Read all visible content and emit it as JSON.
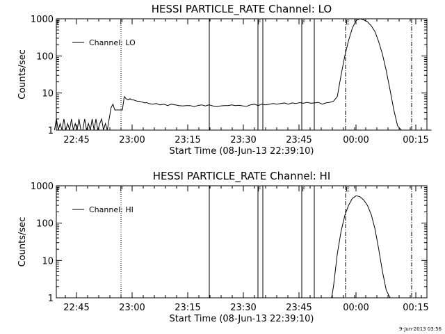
{
  "footer_date": "9-Jun-2013 03:56",
  "chart_data": [
    {
      "type": "line",
      "title": "HESSI PARTICLE_RATE Channel: LO",
      "xlabel": "Start Time (08-Jun-13 22:39:10)",
      "ylabel": "Counts/sec",
      "y_scale": "log",
      "ylim": [
        1,
        1000
      ],
      "y_tick_labels": [
        "1",
        "10",
        "100",
        "1000"
      ],
      "x_range_minutes_after_2239": [
        0,
        100
      ],
      "x_tick_labels": [
        "22:45",
        "23:00",
        "23:15",
        "23:30",
        "23:45",
        "00:00",
        "00:15"
      ],
      "legend": {
        "label": "Channel: LO",
        "position": "top-left"
      },
      "flag_labels": [
        "F",
        "F",
        "F",
        "F",
        "E"
      ],
      "series": [
        {
          "name": "Channel: LO",
          "x_minutes_after_2239": [
            0,
            0.5,
            1,
            1.5,
            2,
            2.5,
            3,
            3.5,
            4,
            4.5,
            5,
            5.5,
            6,
            6.5,
            7,
            7.5,
            8,
            8.5,
            9,
            9.5,
            10,
            10.5,
            11,
            11.5,
            12,
            12.5,
            13,
            13.5,
            14,
            14.5,
            15,
            15.5,
            16,
            16.5,
            17,
            17.5,
            18,
            18.5,
            19,
            19.5,
            20,
            20.5,
            21,
            21.5,
            22,
            22.5,
            23,
            23.5,
            24,
            24.5,
            25,
            26,
            27,
            28,
            29,
            30,
            31,
            32,
            33,
            34,
            35,
            36,
            37,
            38,
            39,
            40,
            41,
            42,
            43,
            44,
            45,
            46,
            47,
            48,
            49,
            50,
            51,
            52,
            53,
            54,
            55,
            56,
            57,
            58,
            59,
            60,
            61,
            62,
            63,
            64,
            65,
            66,
            67,
            68,
            69,
            70,
            71,
            72,
            73,
            74,
            75,
            76,
            77,
            78,
            79,
            80,
            81,
            82,
            83,
            84,
            85,
            86,
            87,
            88,
            89,
            90,
            91,
            92,
            93,
            94,
            95,
            96,
            97,
            98,
            99,
            100
          ],
          "y": [
            1,
            2,
            1,
            1.5,
            1,
            2,
            1,
            1.5,
            1,
            2,
            1,
            1.5,
            1,
            2,
            1,
            1,
            2,
            1,
            1.5,
            1,
            2,
            1,
            2,
            1,
            1.5,
            2,
            1,
            1.5,
            1,
            2,
            4,
            5,
            3.5,
            3.5,
            3.5,
            3.5,
            3.5,
            8,
            7,
            6.5,
            7,
            6.5,
            6.5,
            6.2,
            6,
            6,
            5.8,
            5.6,
            5.4,
            5.5,
            5.2,
            5,
            5.2,
            4.8,
            5,
            4.6,
            5,
            4.8,
            4.6,
            4.5,
            4.6,
            4.6,
            4.3,
            4.6,
            4.8,
            4.5,
            4.8,
            4.5,
            4.3,
            4.5,
            4.6,
            4.6,
            4.8,
            4.6,
            4.7,
            4.5,
            4.4,
            4.8,
            5,
            4.6,
            5,
            4.8,
            5,
            5.2,
            5,
            5.2,
            5.4,
            5,
            5.4,
            5.2,
            5.5,
            5.3,
            5.6,
            5.3,
            5.4,
            5.6,
            5,
            5.4,
            5.6,
            6,
            8,
            30,
            100,
            260,
            560,
            900,
            1000,
            940,
            830,
            650,
            450,
            240,
            110,
            40,
            12,
            3.5,
            1.3,
            1,
            1,
            1,
            1,
            1,
            1,
            1,
            1,
            1
          ]
        }
      ]
    },
    {
      "type": "line",
      "title": "HESSI PARTICLE_RATE Channel: HI",
      "xlabel": "Start Time (08-Jun-13 22:39:10)",
      "ylabel": "Counts/sec",
      "y_scale": "log",
      "ylim": [
        1,
        1000
      ],
      "y_tick_labels": [
        "1",
        "10",
        "100",
        "1000"
      ],
      "x_range_minutes_after_2239": [
        0,
        100
      ],
      "x_tick_labels": [
        "22:45",
        "23:00",
        "23:15",
        "23:30",
        "23:45",
        "00:00",
        "00:15"
      ],
      "legend": {
        "label": "Channel: HI",
        "position": "top-left"
      },
      "flag_labels": [
        "F",
        "F",
        "F",
        "F",
        "E"
      ],
      "series": [
        {
          "name": "Channel: HI",
          "x_minutes_after_2239": [
            73.5,
            74,
            75,
            76,
            77,
            78,
            79,
            80,
            81,
            82,
            83,
            84,
            85,
            86,
            87,
            88,
            89
          ],
          "y": [
            1,
            2,
            15,
            60,
            160,
            300,
            460,
            540,
            510,
            420,
            300,
            170,
            70,
            20,
            5,
            1.6,
            1
          ]
        }
      ]
    }
  ]
}
